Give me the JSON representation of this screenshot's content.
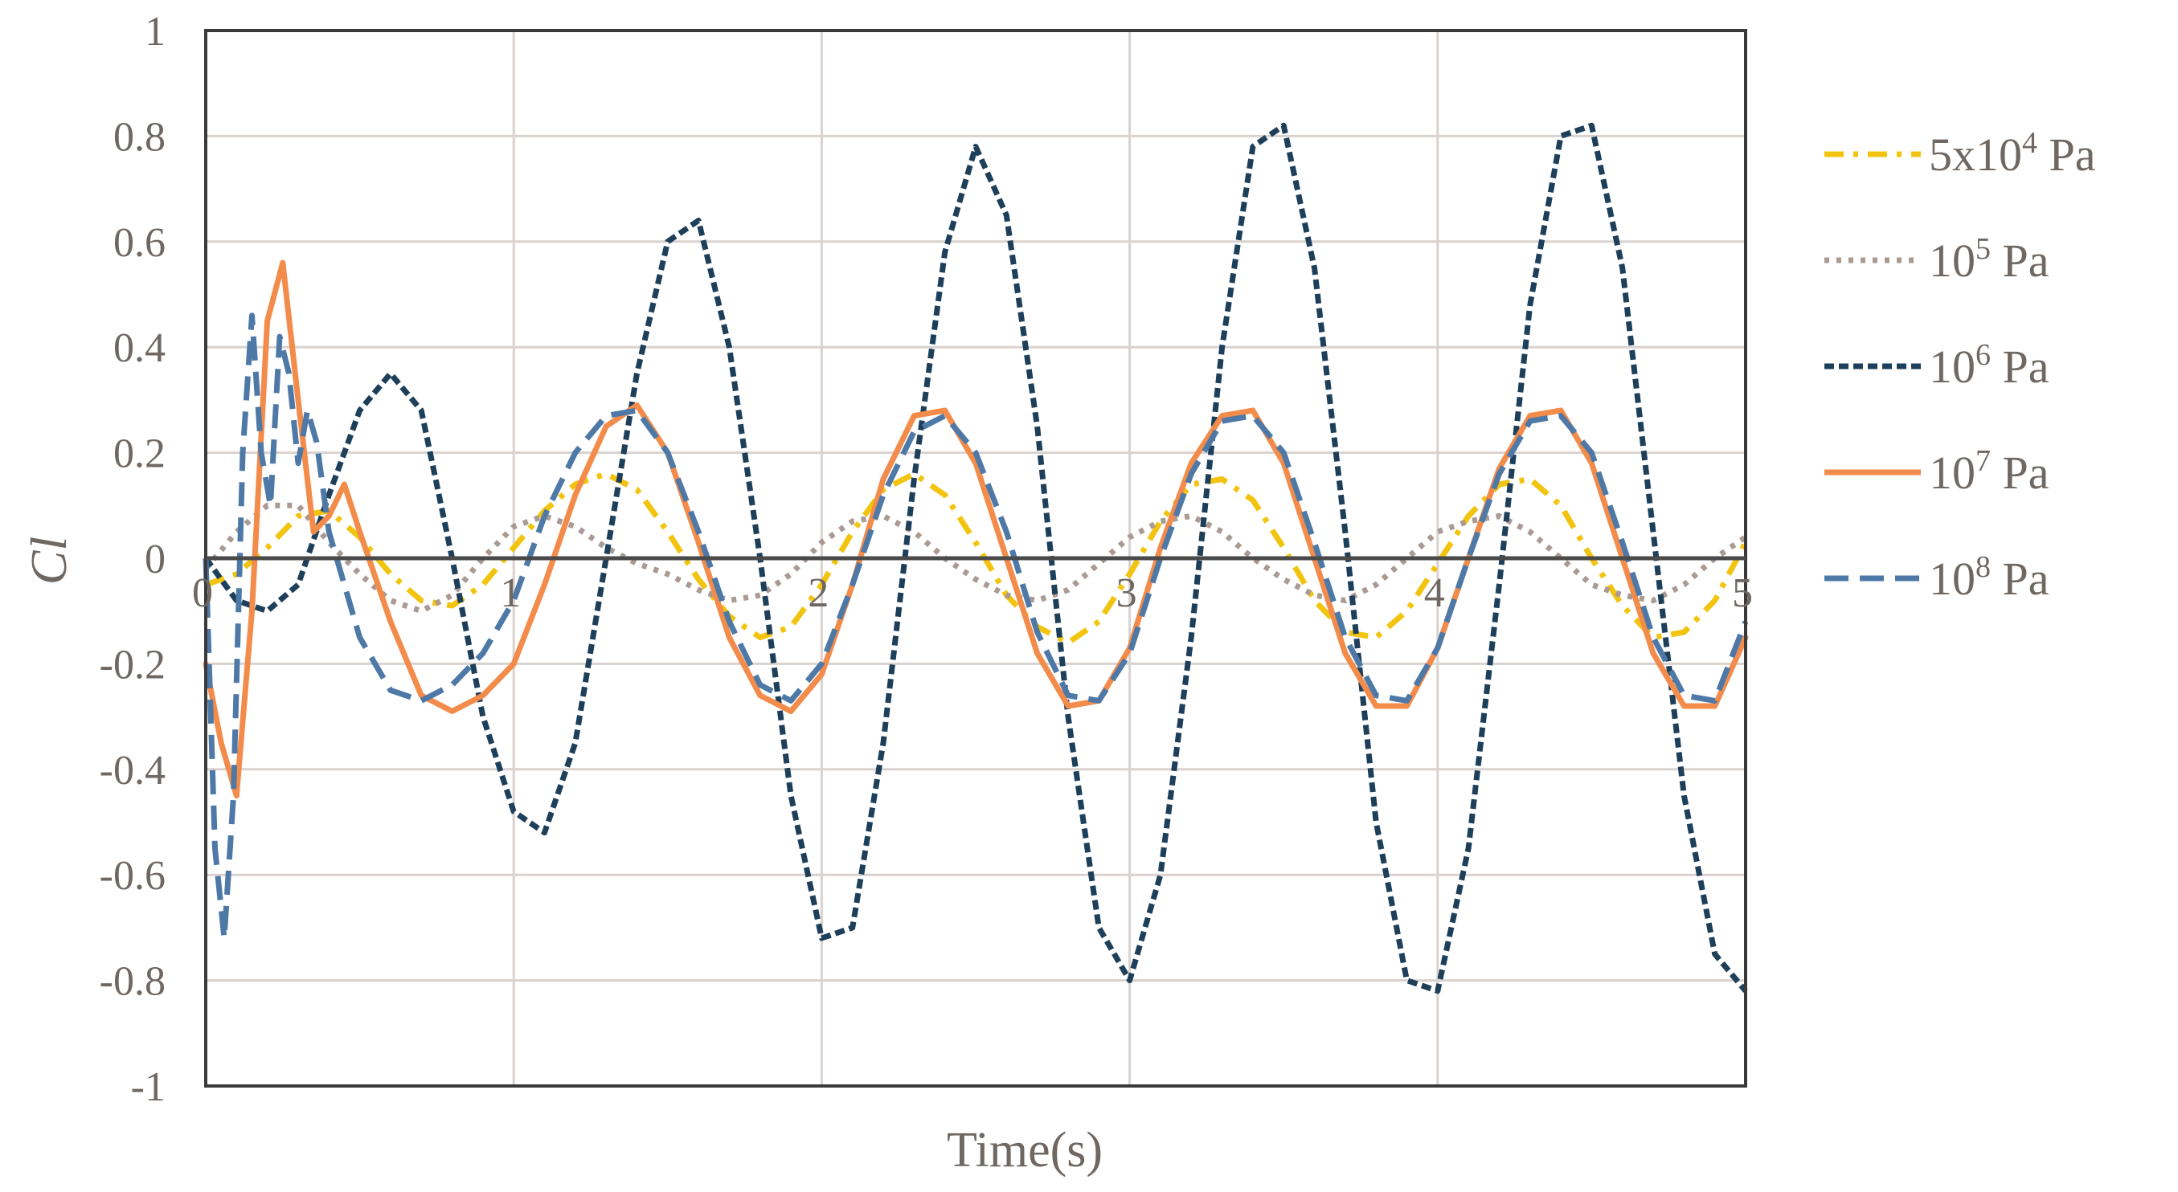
{
  "chart_data": {
    "type": "line",
    "xlabel": "Time(s)",
    "ylabel": "Cl",
    "xlim": [
      0,
      5
    ],
    "ylim": [
      -1,
      1
    ],
    "x_ticks": [
      "0",
      "1",
      "2",
      "3",
      "4",
      "5"
    ],
    "y_ticks": [
      "1",
      "0.8",
      "0.6",
      "0.4",
      "0.2",
      "0",
      "-0.2",
      "-0.4",
      "-0.6",
      "-0.8",
      "-1"
    ],
    "grid": true,
    "legend_position": "right",
    "series": [
      {
        "name": "5x10⁴ Pa",
        "label_base": "5x10",
        "label_exp": "4",
        "label_unit": " Pa",
        "color": "#f2c40f",
        "dash": "24 12 6 12",
        "x": [
          0,
          0.1,
          0.2,
          0.3,
          0.4,
          0.5,
          0.6,
          0.7,
          0.8,
          0.9,
          1.0,
          1.1,
          1.2,
          1.3,
          1.4,
          1.5,
          1.6,
          1.7,
          1.8,
          1.9,
          2.0,
          2.1,
          2.2,
          2.3,
          2.4,
          2.5,
          2.6,
          2.7,
          2.8,
          2.9,
          3.0,
          3.1,
          3.2,
          3.3,
          3.4,
          3.5,
          3.6,
          3.7,
          3.8,
          3.9,
          4.0,
          4.1,
          4.2,
          4.3,
          4.4,
          4.5,
          4.6,
          4.7,
          4.8,
          4.9,
          5.0
        ],
        "y": [
          -0.05,
          -0.03,
          0.02,
          0.08,
          0.09,
          0.04,
          -0.03,
          -0.08,
          -0.09,
          -0.05,
          0.02,
          0.09,
          0.14,
          0.16,
          0.13,
          0.05,
          -0.04,
          -0.11,
          -0.15,
          -0.13,
          -0.05,
          0.05,
          0.13,
          0.16,
          0.12,
          0.03,
          -0.07,
          -0.13,
          -0.16,
          -0.12,
          -0.03,
          0.07,
          0.14,
          0.15,
          0.11,
          0.02,
          -0.08,
          -0.14,
          -0.15,
          -0.1,
          -0.01,
          0.08,
          0.14,
          0.15,
          0.1,
          0.0,
          -0.09,
          -0.15,
          -0.14,
          -0.08,
          0.03
        ]
      },
      {
        "name": "10⁵ Pa",
        "label_base": "10",
        "label_exp": "5",
        "label_unit": " Pa",
        "color": "#a99a94",
        "dash": "6 9",
        "x": [
          0,
          0.1,
          0.2,
          0.3,
          0.4,
          0.5,
          0.6,
          0.7,
          0.8,
          0.9,
          1.0,
          1.1,
          1.2,
          1.3,
          1.4,
          1.5,
          1.6,
          1.7,
          1.8,
          1.9,
          2.0,
          2.1,
          2.2,
          2.3,
          2.4,
          2.5,
          2.6,
          2.7,
          2.8,
          2.9,
          3.0,
          3.1,
          3.2,
          3.3,
          3.4,
          3.5,
          3.6,
          3.7,
          3.8,
          3.9,
          4.0,
          4.1,
          4.2,
          4.3,
          4.4,
          4.5,
          4.6,
          4.7,
          4.8,
          4.9,
          5.0
        ],
        "y": [
          -0.02,
          0.05,
          0.1,
          0.1,
          0.03,
          -0.03,
          -0.08,
          -0.1,
          -0.07,
          0.0,
          0.06,
          0.08,
          0.06,
          0.02,
          -0.01,
          -0.03,
          -0.06,
          -0.08,
          -0.07,
          -0.03,
          0.03,
          0.07,
          0.08,
          0.05,
          0.0,
          -0.04,
          -0.07,
          -0.08,
          -0.06,
          -0.01,
          0.04,
          0.07,
          0.08,
          0.05,
          0.0,
          -0.04,
          -0.07,
          -0.08,
          -0.05,
          0.0,
          0.05,
          0.07,
          0.08,
          0.05,
          0.0,
          -0.05,
          -0.07,
          -0.08,
          -0.05,
          0.0,
          0.04
        ]
      },
      {
        "name": "10⁶ Pa",
        "label_base": "10",
        "label_exp": "6",
        "label_unit": " Pa",
        "color": "#1e3f5a",
        "dash": "12 6",
        "x": [
          0,
          0.1,
          0.2,
          0.3,
          0.4,
          0.5,
          0.6,
          0.7,
          0.8,
          0.9,
          1.0,
          1.1,
          1.2,
          1.3,
          1.4,
          1.5,
          1.6,
          1.7,
          1.8,
          1.9,
          2.0,
          2.1,
          2.2,
          2.3,
          2.4,
          2.5,
          2.6,
          2.7,
          2.8,
          2.9,
          3.0,
          3.1,
          3.2,
          3.3,
          3.4,
          3.5,
          3.6,
          3.7,
          3.8,
          3.9,
          4.0,
          4.1,
          4.2,
          4.3,
          4.4,
          4.5,
          4.6,
          4.7,
          4.8,
          4.9,
          5.0
        ],
        "y": [
          0.0,
          -0.08,
          -0.1,
          -0.05,
          0.12,
          0.28,
          0.35,
          0.28,
          0.0,
          -0.3,
          -0.48,
          -0.52,
          -0.35,
          0.0,
          0.35,
          0.6,
          0.64,
          0.4,
          0.0,
          -0.45,
          -0.72,
          -0.7,
          -0.35,
          0.15,
          0.58,
          0.78,
          0.65,
          0.25,
          -0.3,
          -0.7,
          -0.8,
          -0.6,
          -0.15,
          0.4,
          0.78,
          0.82,
          0.55,
          0.05,
          -0.5,
          -0.8,
          -0.82,
          -0.55,
          -0.05,
          0.48,
          0.8,
          0.82,
          0.55,
          0.05,
          -0.45,
          -0.75,
          -0.82
        ]
      },
      {
        "name": "10⁷ Pa",
        "label_base": "10",
        "label_exp": "7",
        "label_unit": " Pa",
        "color": "#f38b4a",
        "dash": "",
        "x": [
          0,
          0.05,
          0.1,
          0.15,
          0.2,
          0.25,
          0.3,
          0.35,
          0.4,
          0.45,
          0.5,
          0.6,
          0.7,
          0.8,
          0.9,
          1.0,
          1.1,
          1.2,
          1.3,
          1.4,
          1.5,
          1.6,
          1.7,
          1.8,
          1.9,
          2.0,
          2.1,
          2.2,
          2.3,
          2.4,
          2.5,
          2.6,
          2.7,
          2.8,
          2.9,
          3.0,
          3.1,
          3.2,
          3.3,
          3.4,
          3.5,
          3.6,
          3.7,
          3.8,
          3.9,
          4.0,
          4.1,
          4.2,
          4.3,
          4.4,
          4.5,
          4.6,
          4.7,
          4.8,
          4.9,
          5.0
        ],
        "y": [
          -0.2,
          -0.35,
          -0.45,
          -0.1,
          0.45,
          0.56,
          0.3,
          0.05,
          0.08,
          0.14,
          0.05,
          -0.12,
          -0.26,
          -0.29,
          -0.26,
          -0.2,
          -0.05,
          0.12,
          0.25,
          0.29,
          0.2,
          0.03,
          -0.15,
          -0.26,
          -0.29,
          -0.22,
          -0.05,
          0.15,
          0.27,
          0.28,
          0.18,
          0.0,
          -0.18,
          -0.28,
          -0.27,
          -0.17,
          0.02,
          0.18,
          0.27,
          0.28,
          0.18,
          0.0,
          -0.18,
          -0.28,
          -0.28,
          -0.17,
          0.0,
          0.17,
          0.27,
          0.28,
          0.18,
          0.0,
          -0.18,
          -0.28,
          -0.28,
          -0.15
        ]
      },
      {
        "name": "10⁸ Pa",
        "label_base": "10",
        "label_exp": "8",
        "label_unit": " Pa",
        "color": "#4e79a7",
        "dash": "30 14",
        "x": [
          0,
          0.03,
          0.06,
          0.09,
          0.12,
          0.15,
          0.18,
          0.21,
          0.24,
          0.27,
          0.3,
          0.33,
          0.36,
          0.4,
          0.5,
          0.6,
          0.7,
          0.8,
          0.9,
          1.0,
          1.1,
          1.2,
          1.3,
          1.4,
          1.5,
          1.6,
          1.7,
          1.8,
          1.9,
          2.0,
          2.1,
          2.2,
          2.3,
          2.4,
          2.5,
          2.6,
          2.7,
          2.8,
          2.9,
          3.0,
          3.1,
          3.2,
          3.3,
          3.4,
          3.5,
          3.6,
          3.7,
          3.8,
          3.9,
          4.0,
          4.1,
          4.2,
          4.3,
          4.4,
          4.5,
          4.6,
          4.7,
          4.8,
          4.9,
          5.0
        ],
        "y": [
          0.0,
          -0.55,
          -0.72,
          -0.45,
          0.2,
          0.46,
          0.2,
          0.1,
          0.42,
          0.35,
          0.18,
          0.28,
          0.22,
          0.05,
          -0.15,
          -0.25,
          -0.27,
          -0.24,
          -0.18,
          -0.08,
          0.08,
          0.2,
          0.27,
          0.28,
          0.2,
          0.05,
          -0.12,
          -0.24,
          -0.27,
          -0.2,
          -0.05,
          0.12,
          0.24,
          0.27,
          0.2,
          0.05,
          -0.14,
          -0.26,
          -0.27,
          -0.18,
          0.0,
          0.16,
          0.26,
          0.27,
          0.2,
          0.03,
          -0.15,
          -0.26,
          -0.27,
          -0.17,
          0.0,
          0.16,
          0.26,
          0.27,
          0.2,
          0.03,
          -0.15,
          -0.26,
          -0.27,
          -0.12
        ]
      }
    ]
  }
}
